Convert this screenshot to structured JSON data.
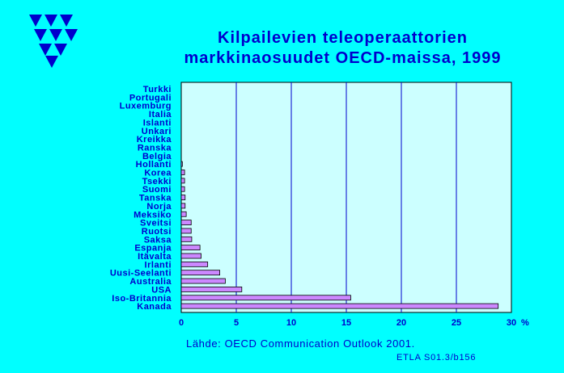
{
  "header": {
    "title_line1": "Kilpailevien  teleoperaattorien",
    "title_line2": "markkinaosuudet  OECD-maissa,  1999"
  },
  "footer": {
    "source": "Lähde: OECD Communication Outlook 2001.",
    "code": "ETLA S01.3/b156"
  },
  "logo": {
    "icon": "etla-triangles-logo",
    "color": "#0000CC"
  },
  "colors": {
    "background": "#00FFFF",
    "plot_background": "#CCFFFF",
    "bar_fill": "#CC88FF",
    "text": "#0000CC"
  },
  "chart_data": {
    "type": "bar",
    "orientation": "horizontal",
    "categories": [
      "Turkki",
      "Portugali",
      "Luxemburg",
      "Italia",
      "Islanti",
      "Unkari",
      "Kreikka",
      "Ranska",
      "Belgia",
      "Hollanti",
      "Korea",
      "Tsekki",
      "Suomi",
      "Tanska",
      "Norja",
      "Meksiko",
      "Sveitsi",
      "Ruotsi",
      "Saksa",
      "Espanja",
      "Itävalta",
      "Irlanti",
      "Uusi-Seelanti",
      "Australia",
      "USA",
      "Iso-Britannia",
      "Kanada"
    ],
    "values": [
      0,
      0,
      0,
      0,
      0,
      0,
      0,
      0,
      0,
      0.1,
      0.3,
      0.3,
      0.3,
      0.35,
      0.35,
      0.45,
      0.9,
      0.9,
      0.95,
      1.7,
      1.8,
      2.4,
      3.5,
      4.0,
      5.5,
      15.4,
      28.8
    ],
    "xlim": [
      0,
      30
    ],
    "xticks": [
      "0",
      "5",
      "10",
      "15",
      "20",
      "25",
      "30"
    ],
    "x_unit": "%",
    "grid": "vertical"
  }
}
